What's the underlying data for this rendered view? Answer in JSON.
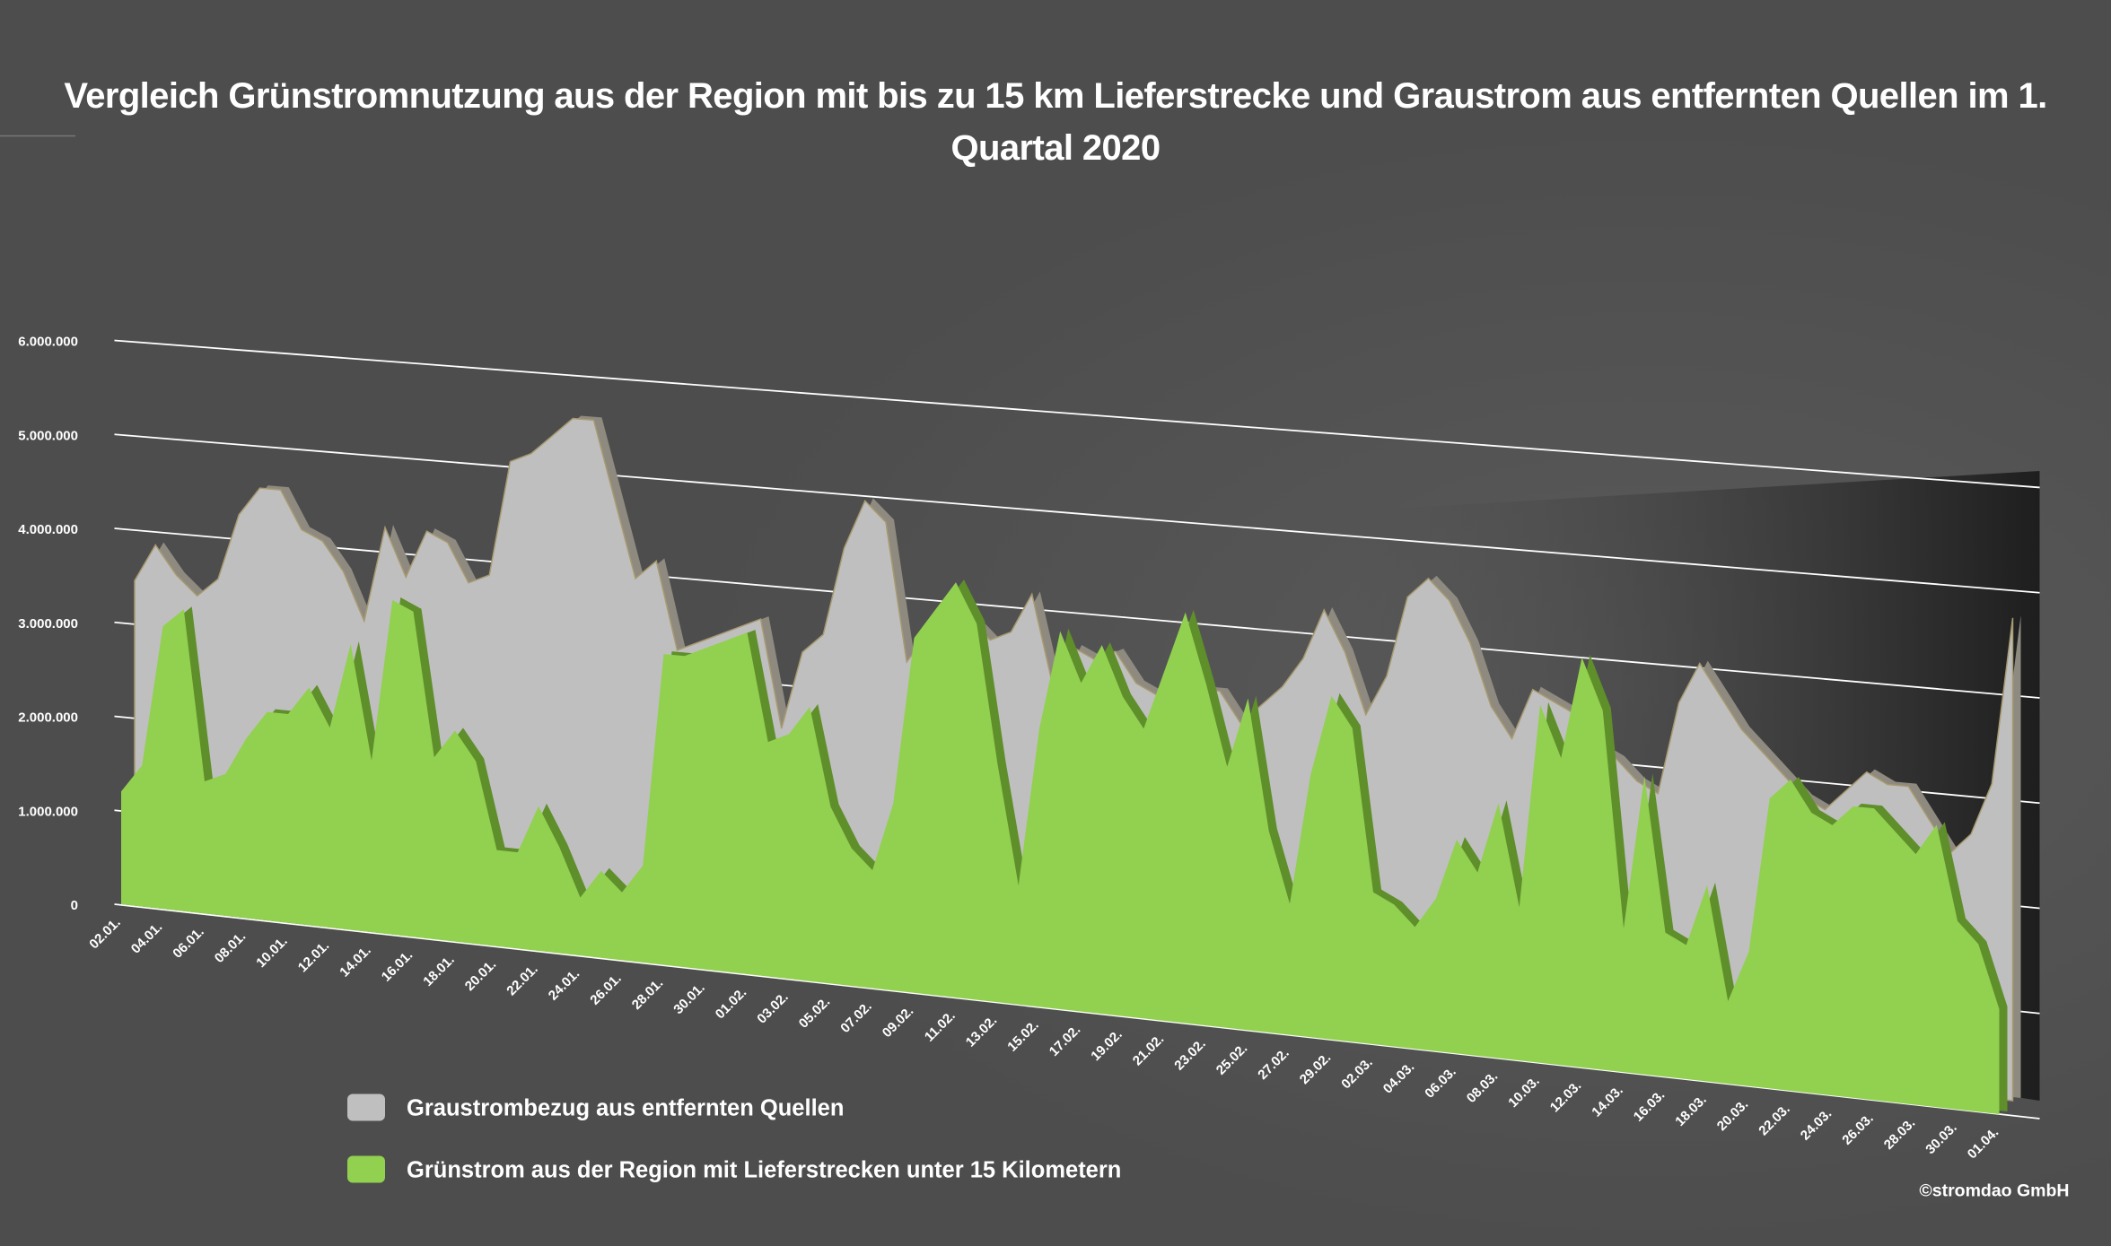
{
  "chart_data": {
    "type": "area",
    "title": "Vergleich Grünstromnutzung aus der Region mit bis zu 15 km Lieferstrecke und Graustrom aus entfernten Quellen im 1. Quartal 2020",
    "categories": [
      "02.01.",
      null,
      "04.01.",
      null,
      "06.01.",
      null,
      "08.01.",
      null,
      "10.01.",
      null,
      "12.01.",
      null,
      "14.01.",
      null,
      "16.01.",
      null,
      "18.01.",
      null,
      "20.01.",
      null,
      "22.01.",
      null,
      "24.01.",
      null,
      "26.01.",
      null,
      "28.01.",
      null,
      "30.01.",
      null,
      "01.02.",
      null,
      "03.02.",
      null,
      "05.02.",
      null,
      "07.02.",
      null,
      "09.02.",
      null,
      "11.02.",
      null,
      "13.02.",
      null,
      "15.02.",
      null,
      "17.02.",
      null,
      "19.02.",
      null,
      "21.02.",
      null,
      "23.02.",
      null,
      "25.02.",
      null,
      "27.02.",
      null,
      "29.02.",
      null,
      "02.03.",
      null,
      "04.03.",
      null,
      "06.03.",
      null,
      "08.03.",
      null,
      "10.03.",
      null,
      "12.03.",
      null,
      "14.03.",
      null,
      "16.03.",
      null,
      "18.03.",
      null,
      "20.03.",
      null,
      "22.03.",
      null,
      "24.03.",
      null,
      "26.03.",
      null,
      "28.03.",
      null,
      "30.03.",
      null,
      "01.04."
    ],
    "series": [
      {
        "name": "Graustrombezug aus entfernten Quellen",
        "color": "#bfbfbf",
        "values": [
          3300000,
          3700000,
          3400000,
          3200000,
          3400000,
          4100000,
          4400000,
          4400000,
          4000000,
          3900000,
          3600000,
          3100000,
          4100000,
          3600000,
          4100000,
          4000000,
          3600000,
          3700000,
          4900000,
          5000000,
          5200000,
          5400000,
          5400000,
          4600000,
          3800000,
          4000000,
          3100000,
          3200000,
          3300000,
          3400000,
          3500000,
          2400000,
          3200000,
          3400000,
          4300000,
          4800000,
          4600000,
          3200000,
          3500000,
          3600000,
          3700000,
          3500000,
          3600000,
          4000000,
          3100000,
          3500000,
          3400000,
          3500000,
          3200000,
          3100000,
          3100000,
          3200000,
          3200000,
          2900000,
          3100000,
          3300000,
          3600000,
          4100000,
          3700000,
          3100000,
          3500000,
          4300000,
          4500000,
          4300000,
          3900000,
          3300000,
          3000000,
          3500000,
          3400000,
          3300000,
          3000000,
          2900000,
          2700000,
          2600000,
          3500000,
          3900000,
          3600000,
          3300000,
          3100000,
          2900000,
          2700000,
          2600000,
          2800000,
          3000000,
          2900000,
          2900000,
          2600000,
          2300000,
          2500000,
          3000000,
          4600000
        ]
      },
      {
        "name": "Grünstrom aus der Region mit Lieferstrecken unter 15 Kilometern",
        "color": "#92d050",
        "values": [
          1200000,
          1500000,
          3000000,
          3200000,
          1400000,
          1500000,
          1900000,
          2200000,
          2200000,
          2500000,
          2100000,
          3000000,
          1800000,
          3500000,
          3400000,
          1900000,
          2200000,
          1900000,
          1000000,
          1000000,
          1500000,
          1100000,
          600000,
          900000,
          700000,
          1000000,
          3200000,
          3200000,
          3300000,
          3400000,
          3500000,
          2400000,
          2500000,
          2800000,
          1800000,
          1400000,
          1200000,
          1900000,
          3600000,
          3900000,
          4200000,
          3800000,
          2400000,
          1200000,
          2800000,
          3800000,
          3300000,
          3700000,
          3200000,
          2900000,
          3500000,
          4100000,
          3400000,
          2600000,
          3300000,
          2000000,
          1300000,
          2600000,
          3400000,
          3100000,
          1500000,
          1400000,
          1200000,
          1500000,
          2100000,
          1800000,
          2500000,
          1500000,
          3500000,
          3000000,
          4000000,
          3500000,
          1400000,
          2900000,
          1400000,
          1300000,
          1900000,
          800000,
          1300000,
          2800000,
          3000000,
          2700000,
          2600000,
          2800000,
          2800000,
          2600000,
          2400000,
          2700000,
          1800000,
          1600000,
          1000000
        ]
      }
    ],
    "ylim": [
      0,
      6000000
    ],
    "yticks": [
      0,
      {
        "value": 1000000,
        "label": "1.000.000"
      },
      {
        "value": 2000000,
        "label": "2.000.000"
      },
      {
        "value": 3000000,
        "label": "3.000.000"
      },
      {
        "value": 4000000,
        "label": "4.000.000"
      },
      {
        "value": 5000000,
        "label": "5.000.000"
      },
      {
        "value": 6000000,
        "label": "6.000.000"
      }
    ],
    "grid": true,
    "copyright": "©stromdao GmbH"
  }
}
